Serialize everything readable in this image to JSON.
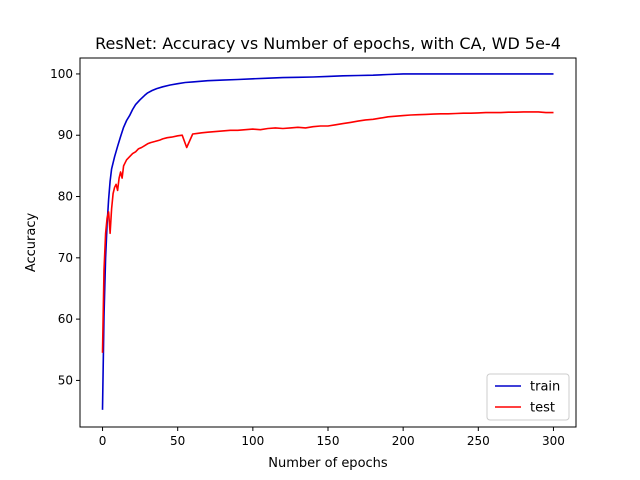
{
  "chart_data": {
    "type": "line",
    "title": "ResNet: Accuracy vs Number of epochs, with CA, WD 5e-4",
    "xlabel": "Number of epochs",
    "ylabel": "Accuracy",
    "xlim": [
      -15,
      315
    ],
    "ylim": [
      42.4,
      102.6
    ],
    "xticks": [
      0,
      50,
      100,
      150,
      200,
      250,
      300
    ],
    "yticks": [
      50,
      60,
      70,
      80,
      90,
      100
    ],
    "grid": false,
    "legend_position": "bottom-right",
    "series": [
      {
        "name": "train",
        "color": "#0000cc",
        "x": [
          0,
          1,
          2,
          3,
          4,
          5,
          6,
          8,
          10,
          12,
          14,
          16,
          18,
          20,
          22,
          25,
          28,
          30,
          33,
          36,
          40,
          45,
          50,
          55,
          60,
          70,
          80,
          90,
          100,
          110,
          120,
          130,
          140,
          150,
          160,
          170,
          180,
          190,
          200,
          210,
          220,
          240,
          260,
          280,
          300
        ],
        "y": [
          45.2,
          60.5,
          70.0,
          75.5,
          79.5,
          82.5,
          84.5,
          86.5,
          88.2,
          89.8,
          91.3,
          92.4,
          93.2,
          94.2,
          95.0,
          95.8,
          96.5,
          96.9,
          97.3,
          97.6,
          97.9,
          98.2,
          98.4,
          98.6,
          98.7,
          98.9,
          99.0,
          99.1,
          99.2,
          99.3,
          99.4,
          99.45,
          99.5,
          99.6,
          99.7,
          99.75,
          99.8,
          99.9,
          100.0,
          100.0,
          100.0,
          100.0,
          100.0,
          100.0,
          100.0
        ]
      },
      {
        "name": "test",
        "color": "#ff0000",
        "x": [
          0,
          1,
          2,
          3,
          4,
          5,
          6,
          7,
          8,
          9,
          10,
          11,
          12,
          13,
          14,
          15,
          16,
          18,
          20,
          22,
          24,
          26,
          28,
          30,
          32,
          35,
          38,
          40,
          43,
          46,
          50,
          53,
          56,
          60,
          63,
          66,
          70,
          75,
          80,
          85,
          90,
          95,
          100,
          105,
          110,
          115,
          120,
          125,
          130,
          135,
          140,
          145,
          150,
          155,
          160,
          165,
          170,
          175,
          180,
          185,
          190,
          195,
          200,
          205,
          210,
          215,
          220,
          225,
          230,
          235,
          240,
          245,
          250,
          255,
          260,
          265,
          270,
          275,
          280,
          285,
          290,
          295,
          300
        ],
        "y": [
          54.5,
          68.0,
          74.0,
          76.5,
          77.5,
          74.0,
          78.0,
          80.5,
          81.5,
          82.0,
          81.0,
          83.0,
          84.0,
          83.0,
          85.0,
          85.5,
          86.0,
          86.5,
          87.0,
          87.3,
          87.8,
          88.0,
          88.3,
          88.6,
          88.8,
          89.0,
          89.2,
          89.4,
          89.6,
          89.7,
          89.9,
          90.0,
          88.0,
          90.2,
          90.3,
          90.4,
          90.5,
          90.6,
          90.7,
          90.8,
          90.8,
          90.9,
          91.0,
          90.9,
          91.1,
          91.2,
          91.1,
          91.2,
          91.3,
          91.2,
          91.4,
          91.5,
          91.5,
          91.7,
          91.9,
          92.1,
          92.3,
          92.5,
          92.6,
          92.8,
          93.0,
          93.1,
          93.2,
          93.3,
          93.35,
          93.4,
          93.45,
          93.5,
          93.5,
          93.55,
          93.6,
          93.6,
          93.65,
          93.7,
          93.7,
          93.7,
          93.75,
          93.75,
          93.8,
          93.8,
          93.8,
          93.7,
          93.7
        ]
      }
    ]
  }
}
